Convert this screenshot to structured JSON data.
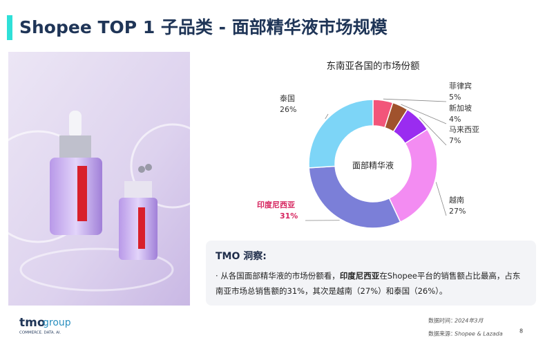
{
  "header": {
    "title": "Shopee TOP 1 子品类 - 面部精华液市场规模"
  },
  "chart_data": {
    "type": "pie",
    "title": "东南亚各国的市场份额",
    "center_label": "面部精华液",
    "categories": [
      "菲律宾",
      "新加坡",
      "马来西亚",
      "越南",
      "印度尼西亚",
      "泰国"
    ],
    "values": [
      5,
      4,
      7,
      27,
      31,
      26
    ],
    "value_labels": [
      "5%",
      "4%",
      "7%",
      "27%",
      "31%",
      "26%"
    ],
    "colors": [
      "#f2557a",
      "#a0522d",
      "#9a2cf0",
      "#f38cf2",
      "#7b7fd8",
      "#7dd5f7"
    ],
    "label_colors": [
      "#333333",
      "#333333",
      "#333333",
      "#333333",
      "#d6245e",
      "#333333"
    ]
  },
  "insight": {
    "title": "TMO 洞察:",
    "text": [
      "从各国面部精华液的市场份额看，",
      "印度尼西亚",
      "在Shopee平台的销售额占比最高，占东南亚市场总销售额的31%，其次是越南（27%）和泰国（26%）。"
    ]
  },
  "footer": {
    "logo_main": "tmo",
    "logo_sub": "group",
    "tagline": "COMMERCE. DATA. AI.",
    "date_label": "数据时间：",
    "date": "2024年3月",
    "source_label": "数据来源：",
    "source": "Shopee & Lazada",
    "page": 8
  }
}
